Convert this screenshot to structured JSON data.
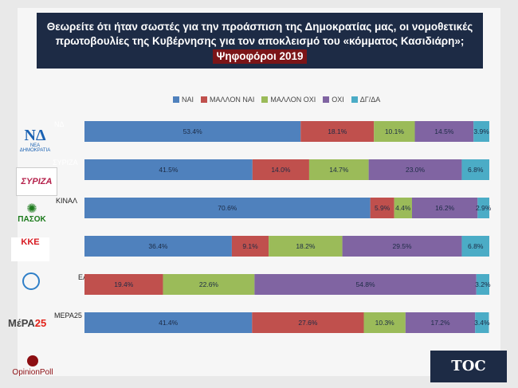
{
  "title": {
    "line1": "Θεωρείτε ότι ήταν σωστές για την προάσπιση της Δημοκρατίας μας,  οι νομοθετικές",
    "line2": "πρωτοβουλίες της Κυβέρνησης για τον αποκλεισμό του «κόμματος Κασιδιάρη»;",
    "line3": "Ψηφοφόροι 2019"
  },
  "colors": [
    "#4f81bd",
    "#c0504d",
    "#9bbb59",
    "#8064a2",
    "#4bacc6"
  ],
  "chart_data": {
    "type": "bar",
    "orientation": "horizontal",
    "stacked": true,
    "legend_position": "top",
    "categories": [
      "ΝΔ",
      "ΣΥΡΙΖΑ",
      "ΠΑΣΟΚ-ΚΙΝΑΛ",
      "ΚΚΕ",
      "ΕΛΛΗΝΙΚΗ ΛΥΣΗ",
      "ΜέΡΑ25"
    ],
    "category_labels_visible": [
      "ΝΔ",
      "ΣΥΡΙΖΑ",
      "ΚΙΝΑΛ",
      "",
      "ΕΛΛΗΝΙΚΗ ΛΥΣΗ",
      "ΜΕΡΑ25"
    ],
    "series": [
      {
        "name": "ΝΑΙ",
        "values": [
          53.4,
          41.5,
          70.6,
          36.4,
          0,
          41.4
        ]
      },
      {
        "name": "ΜΑΛΛΟΝ ΝΑΙ",
        "values": [
          18.1,
          14.0,
          5.9,
          9.1,
          19.4,
          27.6
        ]
      },
      {
        "name": "ΜΑΛΛΟΝ ΟΧΙ",
        "values": [
          10.1,
          14.7,
          4.4,
          18.2,
          22.6,
          10.3
        ]
      },
      {
        "name": "ΟΧΙ",
        "values": [
          14.5,
          23.0,
          16.2,
          29.5,
          54.8,
          17.2
        ]
      },
      {
        "name": "ΔΓ/ΔΑ",
        "values": [
          3.9,
          6.8,
          2.9,
          6.8,
          3.2,
          3.4
        ]
      }
    ],
    "labels": [
      [
        "53.4%",
        "18.1%",
        "10.1%",
        "14.5%",
        "3.9%"
      ],
      [
        "41.5%",
        "14.0%",
        "14.7%",
        "23.0%",
        "6.8%"
      ],
      [
        "70.6%",
        "5.9%",
        "4.4%",
        "16.2%",
        "2.9%"
      ],
      [
        "36.4%",
        "9.1%",
        "18.2%",
        "29.5%",
        "6.8%"
      ],
      [
        "",
        "19.4%",
        "22.6%",
        "54.8%",
        "3.2%"
      ],
      [
        "41.4%",
        "27.6%",
        "10.3%",
        "17.2%",
        "3.4%"
      ]
    ],
    "xlim": [
      0,
      100
    ]
  },
  "logos": {
    "nd": {
      "mark": "ΝΔ",
      "text": "ΝΕΑ ΔΗΜΟΚΡΑΤΙΑ"
    },
    "syriza": {
      "text": "ΣΥΡΙΖΑ"
    },
    "pasok": {
      "text": "ΠΑΣΟΚ"
    },
    "kke": {
      "text": "ΚΚΕ"
    },
    "el": {
      "text": "ΕΛΛΗΝΙΚΗ ΛΥΣΗ"
    },
    "mera": {
      "text": "ΜέΡΑ",
      "num": "25"
    },
    "opinionpoll": {
      "text": "OpinionPoll"
    },
    "toc": {
      "text": "TOC"
    }
  }
}
